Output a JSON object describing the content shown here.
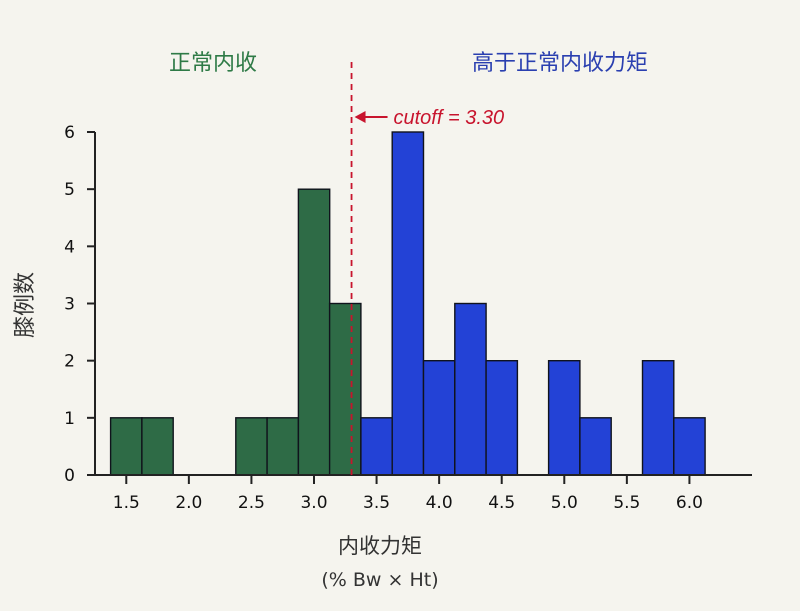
{
  "chart_data": {
    "type": "bar",
    "x_tick_labels": [
      "1.5",
      "2.0",
      "2.5",
      "3.0",
      "3.5",
      "4.0",
      "4.5",
      "5.0",
      "5.5",
      "6.0"
    ],
    "y_tick_labels": [
      "0",
      "1",
      "2",
      "3",
      "4",
      "5",
      "6"
    ],
    "xlim": [
      1.25,
      6.5
    ],
    "ylim": [
      0,
      6
    ],
    "bin_width": 0.25,
    "xlabel": "内收力矩",
    "xlabel_unit": "(% Bw × Ht)",
    "ylabel": "膝例数",
    "region_labels": {
      "normal": "正常内收",
      "high": "高于正常内收力矩"
    },
    "colors": {
      "normal": "#2e6b46",
      "high": "#2342d6",
      "cutoff": "#c8142d",
      "axis": "#222222"
    },
    "cutoff": {
      "value": 3.3,
      "label": "cutoff = 3.30"
    },
    "series": [
      {
        "group": "normal",
        "bins": [
          {
            "x": 1.5,
            "count": 1
          },
          {
            "x": 1.75,
            "count": 1
          },
          {
            "x": 2.5,
            "count": 1
          },
          {
            "x": 2.75,
            "count": 1
          },
          {
            "x": 3.0,
            "count": 5
          },
          {
            "x": 3.25,
            "count": 3
          }
        ]
      },
      {
        "group": "high",
        "bins": [
          {
            "x": 3.5,
            "count": 1
          },
          {
            "x": 3.75,
            "count": 6
          },
          {
            "x": 4.0,
            "count": 2
          },
          {
            "x": 4.25,
            "count": 3
          },
          {
            "x": 4.5,
            "count": 2
          },
          {
            "x": 5.0,
            "count": 2
          },
          {
            "x": 5.25,
            "count": 1
          },
          {
            "x": 5.75,
            "count": 2
          },
          {
            "x": 6.0,
            "count": 1
          }
        ]
      }
    ]
  }
}
